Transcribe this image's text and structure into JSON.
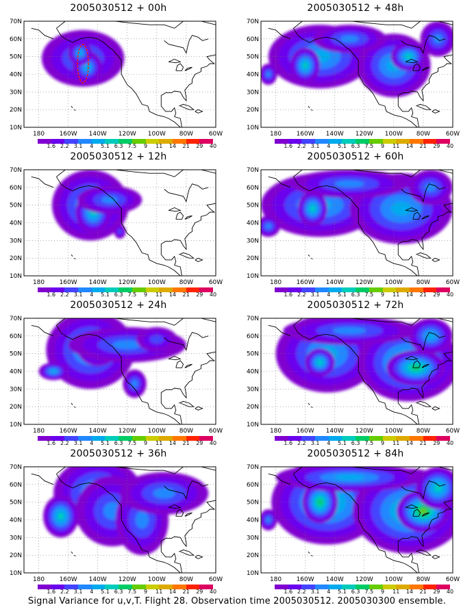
{
  "panels": [
    {
      "title": "2005030512 + 00h",
      "col": 0,
      "row": 0,
      "spread": 0,
      "blobs": [
        [
          -150,
          49,
          28,
          16,
          3
        ],
        [
          -147,
          44,
          10,
          9,
          4
        ],
        [
          -152,
          52,
          8,
          7,
          4
        ]
      ]
    },
    {
      "title": "2005030512 + 12h",
      "col": 0,
      "row": 1,
      "spread": 1,
      "blobs": [
        [
          -145,
          50,
          26,
          20,
          4
        ],
        [
          -143,
          46,
          12,
          12,
          5
        ],
        [
          -132,
          53,
          22,
          8,
          3
        ],
        [
          -125,
          35,
          4,
          4,
          2
        ]
      ]
    },
    {
      "title": "2005030512 + 24h",
      "col": 0,
      "row": 2,
      "spread": 2,
      "blobs": [
        [
          -145,
          52,
          30,
          22,
          4
        ],
        [
          -140,
          53,
          14,
          10,
          5
        ],
        [
          -120,
          55,
          40,
          10,
          3
        ],
        [
          -170,
          40,
          10,
          5,
          4
        ],
        [
          -100,
          58,
          14,
          7,
          2
        ],
        [
          -115,
          33,
          8,
          8,
          3
        ]
      ]
    },
    {
      "title": "2005030512 + 36h",
      "col": 0,
      "row": 3,
      "spread": 3,
      "blobs": [
        [
          -140,
          55,
          30,
          20,
          4
        ],
        [
          -165,
          42,
          12,
          12,
          5
        ],
        [
          -130,
          45,
          25,
          20,
          3
        ],
        [
          -110,
          40,
          18,
          20,
          3
        ],
        [
          -95,
          55,
          30,
          12,
          3
        ]
      ]
    },
    {
      "title": "2005030512 + 48h",
      "col": 1,
      "row": 0,
      "spread": 4,
      "blobs": [
        [
          -150,
          50,
          35,
          18,
          4
        ],
        [
          -160,
          45,
          10,
          10,
          5
        ],
        [
          -100,
          45,
          25,
          18,
          4
        ],
        [
          -90,
          50,
          12,
          8,
          5
        ],
        [
          -130,
          60,
          25,
          8,
          3
        ],
        [
          -70,
          60,
          12,
          10,
          3
        ],
        [
          -185,
          40,
          6,
          6,
          3
        ]
      ]
    },
    {
      "title": "2005030512 + 60h",
      "col": 1,
      "row": 1,
      "spread": 5,
      "blobs": [
        [
          -150,
          50,
          40,
          18,
          4
        ],
        [
          -155,
          48,
          10,
          10,
          5
        ],
        [
          -95,
          48,
          35,
          20,
          4
        ],
        [
          -130,
          62,
          40,
          8,
          3
        ],
        [
          -185,
          38,
          8,
          6,
          3
        ],
        [
          -75,
          60,
          15,
          10,
          3
        ]
      ]
    },
    {
      "title": "2005030512 + 72h",
      "col": 1,
      "row": 2,
      "spread": 6,
      "blobs": [
        [
          -145,
          50,
          35,
          22,
          4
        ],
        [
          -150,
          45,
          10,
          8,
          5
        ],
        [
          -90,
          45,
          35,
          22,
          5
        ],
        [
          -85,
          42,
          20,
          10,
          6
        ],
        [
          -130,
          63,
          45,
          8,
          3
        ],
        [
          -75,
          60,
          15,
          10,
          4
        ]
      ]
    },
    {
      "title": "2005030512 + 84h",
      "col": 1,
      "row": 3,
      "spread": 7,
      "blobs": [
        [
          -145,
          50,
          38,
          24,
          5
        ],
        [
          -150,
          50,
          12,
          12,
          6
        ],
        [
          -90,
          45,
          38,
          24,
          5
        ],
        [
          -80,
          45,
          18,
          12,
          7
        ],
        [
          -130,
          64,
          50,
          8,
          4
        ],
        [
          -70,
          58,
          15,
          12,
          5
        ],
        [
          -185,
          40,
          6,
          6,
          3
        ]
      ]
    }
  ],
  "axes": {
    "y_ticks": [
      "10N",
      "20N",
      "30N",
      "40N",
      "50N",
      "60N",
      "70N"
    ],
    "x_ticks": [
      "180",
      "160W",
      "140W",
      "120W",
      "100W",
      "80W",
      "60W"
    ]
  },
  "colorbar": {
    "labels": [
      "1.6",
      "2.2",
      "3.1",
      "4",
      "5.1",
      "6.3",
      "7.5",
      "9",
      "11",
      "14",
      "21",
      "29",
      "40"
    ],
    "colors": [
      "#8000d0",
      "#6a00ee",
      "#4444ff",
      "#2288ff",
      "#00aaee",
      "#00ccbb",
      "#00cc66",
      "#66cc00",
      "#cccc00",
      "#ddaa00",
      "#ff7700",
      "#ff2200",
      "#dd0060"
    ]
  },
  "caption": "Signal Variance for u,v,T. Flight 28. Observation time 2005030512. 2005030300 ensemble."
}
